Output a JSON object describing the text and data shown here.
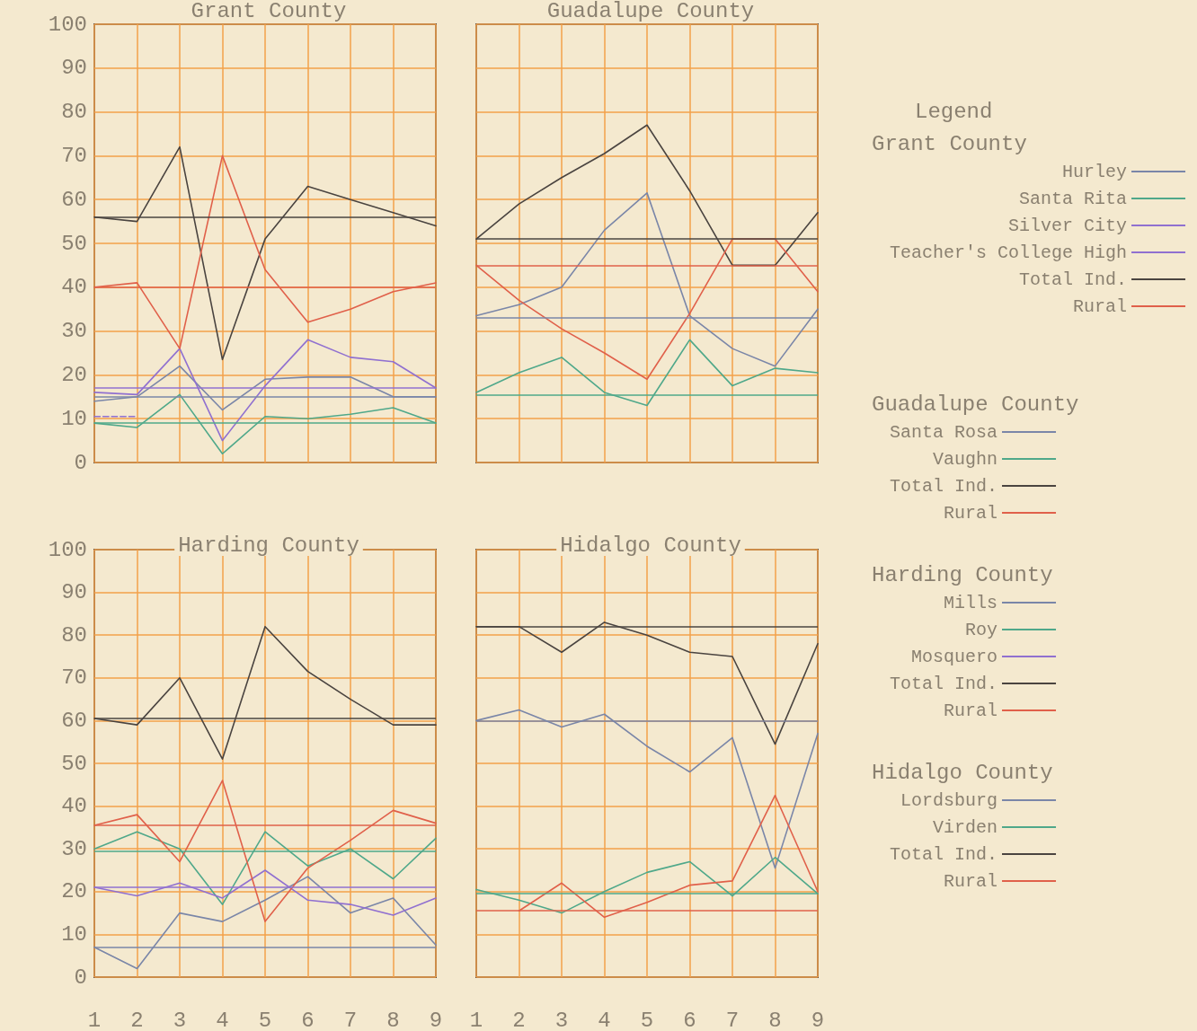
{
  "chart_data": [
    {
      "type": "line",
      "title": "Grant County",
      "legend_title": "Grant County",
      "annotations": [
        "Legend"
      ],
      "categories": [
        "1",
        "2",
        "3",
        "4",
        "5",
        "6",
        "7",
        "8",
        "9"
      ],
      "ylim": [
        0,
        100
      ],
      "yticks": [
        0,
        10,
        20,
        30,
        40,
        50,
        60,
        70,
        80,
        90,
        100
      ],
      "grid": true,
      "legend": "right",
      "tick_labels": "y",
      "series": [
        {
          "name": "Hurley",
          "color": "#7a86a8",
          "values": [
            14,
            15,
            22,
            12,
            19,
            19.5,
            19.5,
            15,
            15
          ]
        },
        {
          "name": "Santa Rita",
          "color": "#4fa88a",
          "values": [
            9,
            8,
            15.5,
            2,
            10.5,
            10,
            11,
            12.5,
            9
          ]
        },
        {
          "name": "Silver City",
          "color": "#9070d0",
          "values": [
            16,
            15.5,
            26,
            5,
            17.5,
            28,
            24,
            23,
            17
          ]
        },
        {
          "name": "Teacher's College High",
          "color": "#9070d0",
          "line_style": "dashed",
          "values": [
            10.5,
            10.5,
            null,
            null,
            null,
            null,
            null,
            null,
            null
          ]
        },
        {
          "name": "Total Ind.",
          "color": "#4a4440",
          "values": [
            56,
            55,
            72,
            23.5,
            51,
            63,
            60,
            57,
            54
          ]
        },
        {
          "name": "Rural",
          "color": "#e0604a",
          "values": [
            40,
            41,
            26,
            70,
            44,
            32,
            35,
            39,
            41
          ]
        }
      ],
      "ref_lines": [
        {
          "axis": "y",
          "value": 15,
          "color": "#7a86a8"
        },
        {
          "axis": "y",
          "value": 9,
          "color": "#4fa88a"
        },
        {
          "axis": "y",
          "value": 17,
          "color": "#9070d0"
        },
        {
          "axis": "y",
          "value": 56,
          "color": "#4a4440"
        },
        {
          "axis": "y",
          "value": 40,
          "color": "#e0604a"
        }
      ]
    },
    {
      "type": "line",
      "title": "Guadalupe County",
      "legend_title": "Guadalupe County",
      "categories": [
        "1",
        "2",
        "3",
        "4",
        "5",
        "6",
        "7",
        "8",
        "9"
      ],
      "ylim": [
        0,
        100
      ],
      "yticks": [
        0,
        10,
        20,
        30,
        40,
        50,
        60,
        70,
        80,
        90,
        100
      ],
      "grid": true,
      "legend": "right",
      "tick_labels": false,
      "series": [
        {
          "name": "Santa Rosa",
          "color": "#7a86a8",
          "values": [
            33.5,
            36,
            40,
            53,
            61.5,
            33.5,
            26,
            22,
            35
          ]
        },
        {
          "name": "Vaughn",
          "color": "#4fa88a",
          "values": [
            16,
            20.5,
            24,
            16,
            13,
            28,
            17.5,
            21.5,
            20.5
          ]
        },
        {
          "name": "Total Ind.",
          "color": "#4a4440",
          "values": [
            51,
            59,
            65,
            70.5,
            77,
            62,
            45,
            45,
            57
          ]
        },
        {
          "name": "Rural",
          "color": "#e0604a",
          "values": [
            45,
            37,
            30.5,
            25,
            19,
            34,
            51,
            51,
            39
          ]
        }
      ],
      "ref_lines": [
        {
          "axis": "y",
          "value": 33,
          "color": "#7a86a8"
        },
        {
          "axis": "y",
          "value": 15.5,
          "color": "#4fa88a"
        },
        {
          "axis": "y",
          "value": 51,
          "color": "#4a4440"
        },
        {
          "axis": "y",
          "value": 45,
          "color": "#e0604a"
        }
      ]
    },
    {
      "type": "line",
      "title": "Harding County",
      "legend_title": "Harding County",
      "categories": [
        "1",
        "2",
        "3",
        "4",
        "5",
        "6",
        "7",
        "8",
        "9"
      ],
      "ylim": [
        0,
        100
      ],
      "yticks": [
        0,
        10,
        20,
        30,
        40,
        50,
        60,
        70,
        80,
        90,
        100
      ],
      "grid": true,
      "legend": "right",
      "series": [
        {
          "name": "Mills",
          "color": "#7a86a8",
          "values": [
            7,
            2,
            15,
            13,
            18,
            23.5,
            15,
            18.5,
            7.5
          ]
        },
        {
          "name": "Roy",
          "color": "#4fa88a",
          "values": [
            30,
            34,
            30,
            17,
            34,
            26,
            30,
            23,
            32.5
          ]
        },
        {
          "name": "Mosquero",
          "color": "#9070d0",
          "values": [
            21,
            19,
            22,
            18.5,
            25,
            18,
            17,
            14.5,
            18.5
          ]
        },
        {
          "name": "Total Ind.",
          "color": "#4a4440",
          "values": [
            60.5,
            59,
            70,
            51,
            82,
            71.5,
            65,
            59,
            59
          ]
        },
        {
          "name": "Rural",
          "color": "#e0604a",
          "values": [
            35.5,
            38,
            27,
            46,
            13,
            25.5,
            32,
            39,
            36
          ]
        }
      ],
      "ref_lines": [
        {
          "axis": "y",
          "value": 7,
          "color": "#7a86a8"
        },
        {
          "axis": "y",
          "value": 29.5,
          "color": "#4fa88a"
        },
        {
          "axis": "y",
          "value": 21,
          "color": "#9070d0"
        },
        {
          "axis": "y",
          "value": 60.5,
          "color": "#4a4440"
        },
        {
          "axis": "y",
          "value": 35.5,
          "color": "#e0604a"
        }
      ]
    },
    {
      "type": "line",
      "title": "Hidalgo County",
      "legend_title": "Hidalgo County",
      "categories": [
        "1",
        "2",
        "3",
        "4",
        "5",
        "6",
        "7",
        "8",
        "9"
      ],
      "ylim": [
        0,
        100
      ],
      "yticks": [
        0,
        10,
        20,
        30,
        40,
        50,
        60,
        70,
        80,
        90,
        100
      ],
      "grid": true,
      "legend": "right",
      "tick_labels": "x",
      "series": [
        {
          "name": "Lordsburg",
          "color": "#7a86a8",
          "values": [
            60,
            62.5,
            58.5,
            61.5,
            54,
            48,
            56,
            25.5,
            57
          ]
        },
        {
          "name": "Virden",
          "color": "#4fa88a",
          "values": [
            20.5,
            18,
            15,
            20,
            24.5,
            27,
            19,
            28,
            19.5
          ]
        },
        {
          "name": "Total Ind.",
          "color": "#4a4440",
          "values": [
            82,
            82,
            76,
            83,
            80,
            76,
            75,
            54.5,
            78
          ]
        },
        {
          "name": "Rural",
          "color": "#e0604a",
          "values": [
            null,
            15.5,
            22,
            14,
            17.5,
            21.5,
            22.5,
            42.5,
            20
          ]
        }
      ],
      "ref_lines": [
        {
          "axis": "y",
          "value": 60,
          "color": "#7a86a8"
        },
        {
          "axis": "y",
          "value": 19.5,
          "color": "#4fa88a"
        },
        {
          "axis": "y",
          "value": 82,
          "color": "#4a4440"
        },
        {
          "axis": "y",
          "value": 15.5,
          "color": "#e0604a"
        }
      ]
    }
  ]
}
